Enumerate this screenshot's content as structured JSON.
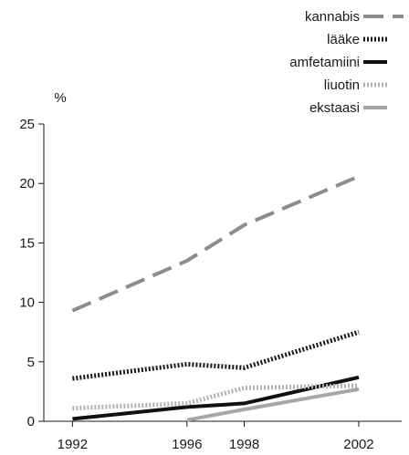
{
  "chart_data": {
    "type": "line",
    "ylabel": "%",
    "xlabel": "",
    "ylim": [
      0,
      25
    ],
    "yticks": [
      0,
      5,
      10,
      15,
      20,
      25
    ],
    "xlim": [
      1991,
      2003.5
    ],
    "xticks": [
      1992,
      1996,
      1998,
      2002
    ],
    "grid": false,
    "legend_position": "top-right",
    "series": [
      {
        "name": "kannabis",
        "x": [
          1992,
          1996,
          1998,
          2002
        ],
        "y": [
          9.3,
          13.5,
          16.5,
          20.6
        ],
        "color": "#8c8c8c",
        "dash": "22,10",
        "width": 4
      },
      {
        "name": "lääke",
        "x": [
          1992,
          1996,
          1998,
          2002
        ],
        "y": [
          3.6,
          4.8,
          4.5,
          7.5
        ],
        "color": "#1a1a1a",
        "dash": "2,2",
        "width": 5
      },
      {
        "name": "amfetamiini",
        "x": [
          1992,
          1996,
          1998,
          2002
        ],
        "y": [
          0.2,
          1.2,
          1.5,
          3.7
        ],
        "color": "#111111",
        "dash": "",
        "width": 4
      },
      {
        "name": "liuotin",
        "x": [
          1992,
          1996,
          1998,
          2002
        ],
        "y": [
          1.1,
          1.5,
          2.8,
          3.0
        ],
        "color": "#b3b3b3",
        "dash": "2,2",
        "width": 5
      },
      {
        "name": "ekstaasi",
        "x": [
          1996,
          1998,
          2002
        ],
        "y": [
          0.1,
          1.0,
          2.7
        ],
        "color": "#a6a6a6",
        "dash": "",
        "width": 4
      }
    ]
  }
}
